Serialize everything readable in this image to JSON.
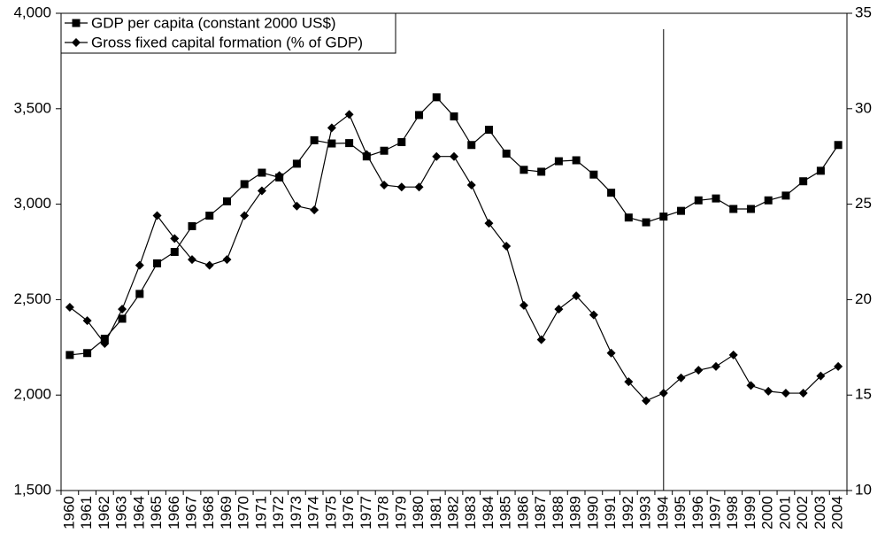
{
  "chart_data": {
    "type": "line",
    "categories": [
      "1960",
      "1961",
      "1962",
      "1963",
      "1964",
      "1965",
      "1966",
      "1967",
      "1968",
      "1969",
      "1970",
      "1971",
      "1972",
      "1973",
      "1974",
      "1975",
      "1976",
      "1977",
      "1978",
      "1979",
      "1980",
      "1981",
      "1982",
      "1983",
      "1984",
      "1985",
      "1986",
      "1987",
      "1988",
      "1989",
      "1990",
      "1991",
      "1992",
      "1993",
      "1994",
      "1995",
      "1996",
      "1997",
      "1998",
      "1999",
      "2000",
      "2001",
      "2002",
      "2003",
      "2004"
    ],
    "series": [
      {
        "name": "GDP per capita (constant 2000 US$)",
        "color": "#000000",
        "marker": "square",
        "values": [
          2210,
          2220,
          2295,
          2400,
          2530,
          2690,
          2750,
          2885,
          2940,
          3015,
          3105,
          3165,
          3140,
          3212,
          3335,
          3318,
          3320,
          3250,
          3280,
          3325,
          3467,
          3560,
          3460,
          3310,
          3390,
          3265,
          3180,
          3170,
          3225,
          3230,
          3155,
          3060,
          2930,
          2905,
          2935,
          2965,
          3020,
          3030,
          2975,
          2975,
          3020,
          3045,
          3120,
          3175,
          3310
        ]
      },
      {
        "name": "Gross fixed capital formation (% of GDP)",
        "color": "#000000",
        "marker": "diamond",
        "axis": "y2",
        "values": [
          19.6,
          18.9,
          17.7,
          19.5,
          21.8,
          24.4,
          23.2,
          22.1,
          21.8,
          22.1,
          24.4,
          25.7,
          26.5,
          24.9,
          24.7,
          29.0,
          29.7,
          27.6,
          26.0,
          25.9,
          25.9,
          27.5,
          27.5,
          26.0,
          24.0,
          22.8,
          19.7,
          17.9,
          19.5,
          20.2,
          19.2,
          17.2,
          15.7,
          14.7,
          15.1,
          15.9,
          16.3,
          16.5,
          17.1,
          15.5,
          15.2,
          15.1,
          15.1,
          16.0,
          16.5
        ]
      }
    ],
    "ylim": [
      1500,
      4000
    ],
    "yticks": [
      {
        "value": 1500,
        "label": "1,500"
      },
      {
        "value": 2000,
        "label": "2,000"
      },
      {
        "value": 2500,
        "label": "2,500"
      },
      {
        "value": 3000,
        "label": "3,000"
      },
      {
        "value": 3500,
        "label": "3,500"
      },
      {
        "value": 4000,
        "label": "4,000"
      }
    ],
    "y2lim": [
      10,
      35
    ],
    "y2ticks": [
      10,
      15,
      20,
      25,
      30,
      35
    ],
    "marker_line": "1994",
    "legend": "top-left",
    "grid": false
  }
}
